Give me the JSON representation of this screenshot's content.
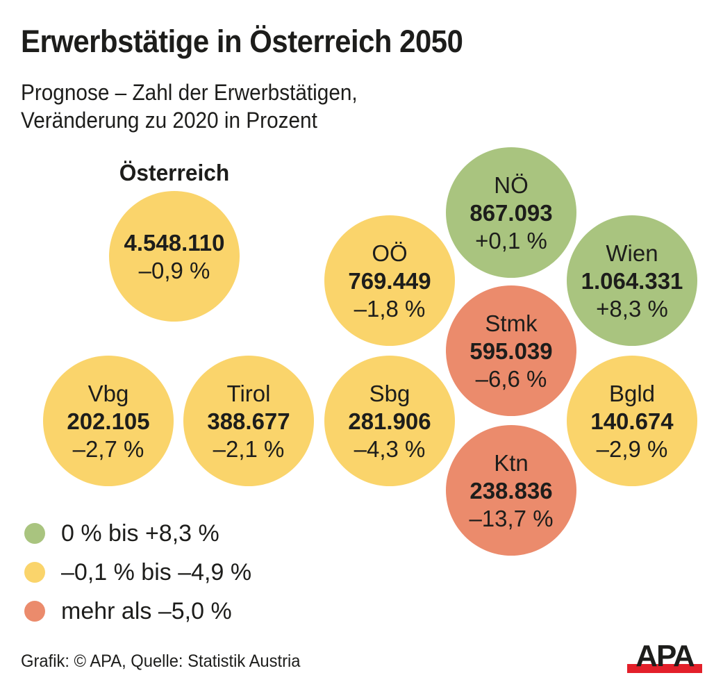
{
  "header": {
    "title": "Erwerbstätige in Österreich 2050",
    "subtitle_line1": "Prognose – Zahl der Erwerbstätigen,",
    "subtitle_line2": "Veränderung zu 2020 in Prozent"
  },
  "colors": {
    "green": "#a9c47f",
    "yellow": "#fad46b",
    "red": "#eb8b6c",
    "text": "#1d1d1b",
    "logo_red": "#e3202a"
  },
  "chart_data": {
    "type": "bubble-tile",
    "title": "Erwerbstätige in Österreich 2050",
    "subtitle": "Prognose – Zahl der Erwerbstätigen, Veränderung zu 2020 in Prozent",
    "unit": "Erwerbstätige; Veränderung zu 2020 in %",
    "national": {
      "label": "Österreich",
      "value": 4548110,
      "value_label": "4.548.110",
      "change_pct": -0.9,
      "change_label": "–0,9 %",
      "category": "yellow"
    },
    "regions": [
      {
        "key": "noe",
        "name": "NÖ",
        "value": 867093,
        "value_label": "867.093",
        "change_pct": 0.1,
        "change_label": "+0,1 %",
        "category": "green",
        "grid_col": 3,
        "grid_row": 0
      },
      {
        "key": "ooe",
        "name": "OÖ",
        "value": 769449,
        "value_label": "769.449",
        "change_pct": -1.8,
        "change_label": "–1,8 %",
        "category": "yellow",
        "grid_col": 2,
        "grid_row": 1
      },
      {
        "key": "wien",
        "name": "Wien",
        "value": 1064331,
        "value_label": "1.064.331",
        "change_pct": 8.3,
        "change_label": "+8,3 %",
        "category": "green",
        "grid_col": 4,
        "grid_row": 1
      },
      {
        "key": "stmk",
        "name": "Stmk",
        "value": 595039,
        "value_label": "595.039",
        "change_pct": -6.6,
        "change_label": "–6,6 %",
        "category": "red",
        "grid_col": 3,
        "grid_row": 2
      },
      {
        "key": "vbg",
        "name": "Vbg",
        "value": 202105,
        "value_label": "202.105",
        "change_pct": -2.7,
        "change_label": "–2,7 %",
        "category": "yellow",
        "grid_col": 0,
        "grid_row": 3
      },
      {
        "key": "tirol",
        "name": "Tirol",
        "value": 388677,
        "value_label": "388.677",
        "change_pct": -2.1,
        "change_label": "–2,1 %",
        "category": "yellow",
        "grid_col": 1,
        "grid_row": 3
      },
      {
        "key": "sbg",
        "name": "Sbg",
        "value": 281906,
        "value_label": "281.906",
        "change_pct": -4.3,
        "change_label": "–4,3 %",
        "category": "yellow",
        "grid_col": 2,
        "grid_row": 3
      },
      {
        "key": "bgld",
        "name": "Bgld",
        "value": 140674,
        "value_label": "140.674",
        "change_pct": -2.9,
        "change_label": "–2,9 %",
        "category": "yellow",
        "grid_col": 4,
        "grid_row": 3
      },
      {
        "key": "ktn",
        "name": "Ktn",
        "value": 238836,
        "value_label": "238.836",
        "change_pct": -13.7,
        "change_label": "–13,7 %",
        "category": "red",
        "grid_col": 3,
        "grid_row": 4
      }
    ],
    "legend": [
      {
        "category": "green",
        "label": "0 % bis +8,3 %"
      },
      {
        "category": "yellow",
        "label": "–0,1 % bis –4,9 %"
      },
      {
        "category": "red",
        "label": "mehr als –5,0 %"
      }
    ],
    "legend_position": "bottom-left"
  },
  "footer": {
    "source": "Grafik: © APA, Quelle: Statistik Austria",
    "logo_text": "APA"
  }
}
